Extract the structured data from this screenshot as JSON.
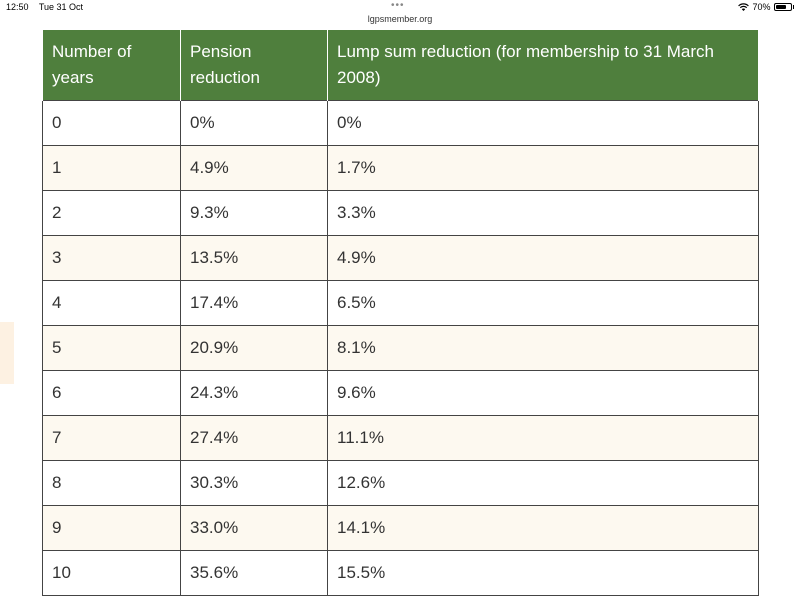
{
  "status_bar": {
    "time": "12:50",
    "date": "Tue 31 Oct",
    "url": "lgpsmember.org",
    "battery_percent": "70%",
    "battery_level": 0.7
  },
  "table": {
    "headers": [
      "Number of years",
      "Pension reduction",
      "Lump sum reduction (for membership to 31 March 2008)"
    ],
    "rows": [
      [
        "0",
        "0%",
        "0%"
      ],
      [
        "1",
        "4.9%",
        "1.7%"
      ],
      [
        "2",
        "9.3%",
        "3.3%"
      ],
      [
        "3",
        "13.5%",
        "4.9%"
      ],
      [
        "4",
        "17.4%",
        "6.5%"
      ],
      [
        "5",
        "20.9%",
        "8.1%"
      ],
      [
        "6",
        "24.3%",
        "9.6%"
      ],
      [
        "7",
        "27.4%",
        "11.1%"
      ],
      [
        "8",
        "30.3%",
        "12.6%"
      ],
      [
        "9",
        "33.0%",
        "14.1%"
      ],
      [
        "10",
        "35.6%",
        "15.5%"
      ]
    ]
  },
  "colors": {
    "header_bg": "#4f7f3d",
    "row_alt_bg": "#fdf9f0"
  }
}
